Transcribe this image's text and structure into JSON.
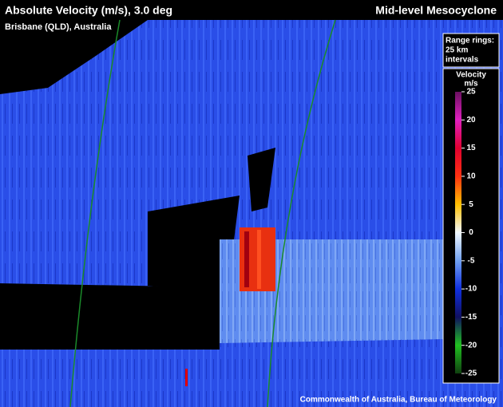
{
  "header": {
    "title": "Absolute Velocity (m/s), 3.0 deg",
    "location": "Brisbane (QLD), Australia",
    "feature": "Mid-level Mesocyclone"
  },
  "range_rings": {
    "lines": [
      "Range rings:",
      "25 km",
      "intervals"
    ]
  },
  "legend": {
    "title": "Velocity",
    "unit": "m/s",
    "ticks": [
      25,
      20,
      15,
      10,
      5,
      0,
      -5,
      -10,
      -15,
      -20,
      -25
    ]
  },
  "footer": "Commonwealth of Australia, Bureau of Meteorology"
}
